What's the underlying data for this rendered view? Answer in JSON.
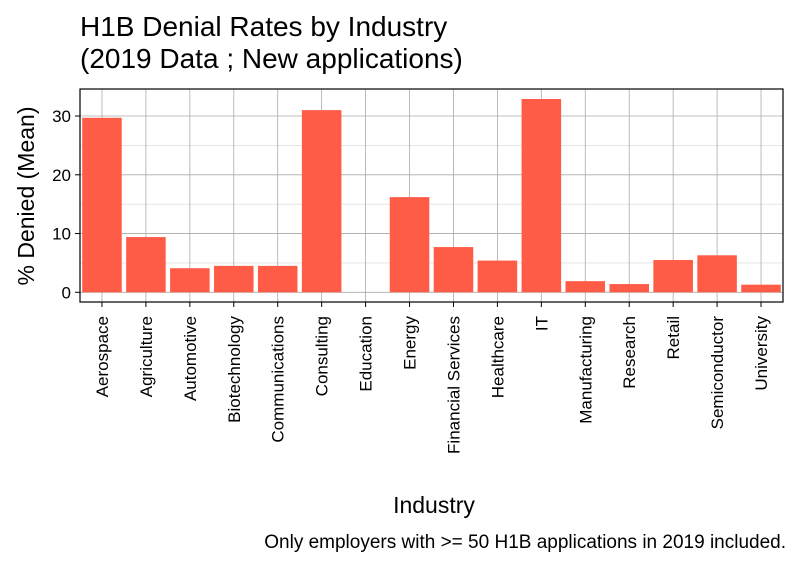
{
  "chart_data": {
    "type": "bar",
    "title_lines": [
      "H1B Denial Rates by Industry",
      "(2019 Data ; New applications)"
    ],
    "xlabel": "Industry",
    "ylabel": "% Denied (Mean)",
    "caption": "Only employers with >= 50 H1B applications in 2019 included.",
    "categories": [
      "Aerospace",
      "Agriculture",
      "Automotive",
      "Biotechnology",
      "Communications",
      "Consulting",
      "Education",
      "Energy",
      "Financial Services",
      "Healthcare",
      "IT",
      "Manufacturing",
      "Research",
      "Retail",
      "Semiconductor",
      "University"
    ],
    "values": [
      29.7,
      9.4,
      4.1,
      4.5,
      4.5,
      31.0,
      0.0,
      16.2,
      7.7,
      5.4,
      32.9,
      1.9,
      1.4,
      5.5,
      6.3,
      1.3
    ],
    "ylim": [
      -1.65,
      34.6
    ],
    "yticks": [
      0,
      10,
      20,
      30
    ],
    "bar_color": "#FF5C47",
    "grid": true,
    "legend": "none"
  }
}
